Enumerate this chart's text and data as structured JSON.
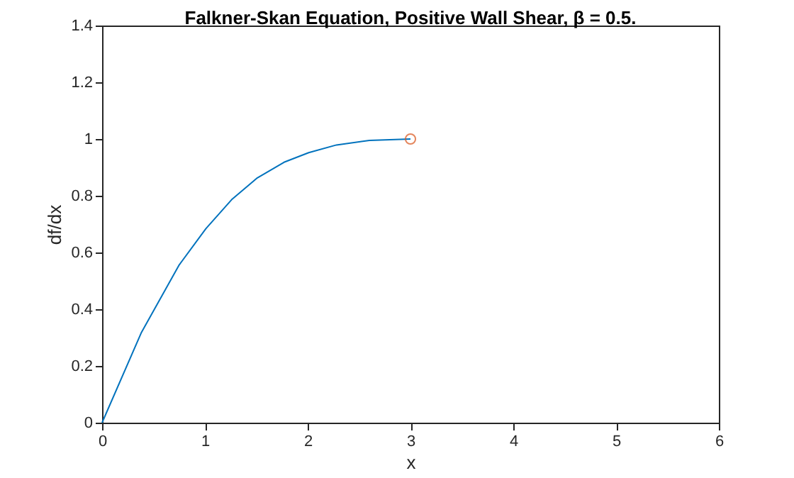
{
  "chart_data": {
    "type": "line",
    "title": "Falkner-Skan Equation, Positive Wall Shear, β = 0.5.",
    "xlabel": "x",
    "ylabel": "df/dx",
    "series": [
      {
        "type": "line",
        "color": "#0072bd",
        "x": [
          0,
          0.38,
          0.75,
          1.01,
          1.26,
          1.51,
          1.77,
          2.01,
          2.28,
          2.6,
          3
        ],
        "values": [
          0,
          0.316,
          0.556,
          0.684,
          0.786,
          0.863,
          0.918,
          0.952,
          0.979,
          0.995,
          1
        ]
      },
      {
        "type": "scatter",
        "marker": "circle",
        "color": "#d95319",
        "x": [
          3
        ],
        "values": [
          1
        ]
      }
    ],
    "xlim": [
      0,
      6
    ],
    "xticks": [
      0,
      1,
      2,
      3,
      4,
      5,
      6
    ],
    "ylim": [
      0,
      1.4
    ],
    "yticks": [
      0,
      0.2,
      0.4,
      0.6,
      0.8,
      1,
      1.2,
      1.4
    ],
    "grid": false
  }
}
